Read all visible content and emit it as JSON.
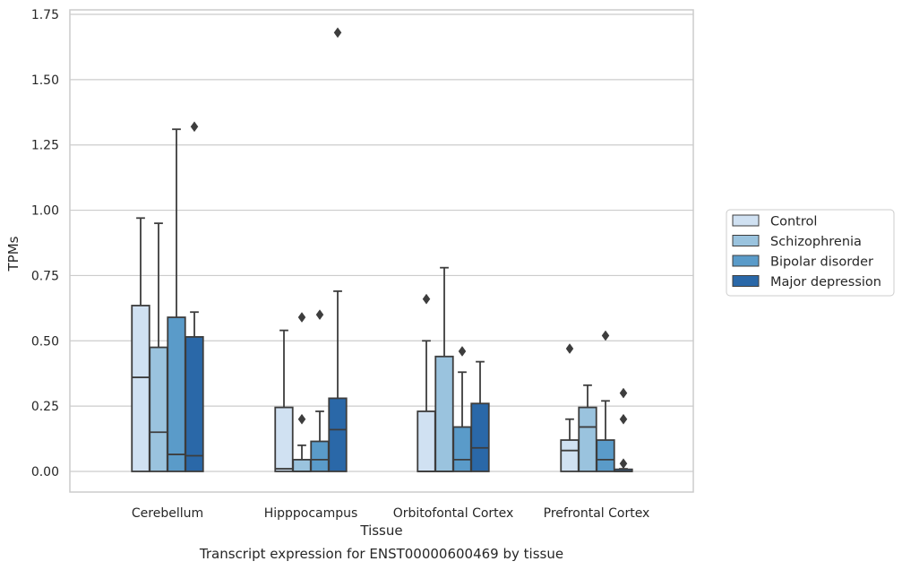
{
  "chart_data": {
    "type": "box",
    "title": "Transcript expression for ENST00000600469 by tissue",
    "xlabel": "Tissue",
    "ylabel": "TPMs",
    "ylim": [
      -0.08,
      1.76
    ],
    "yticks": [
      0.0,
      0.25,
      0.5,
      0.75,
      1.0,
      1.25,
      1.5,
      1.75
    ],
    "ytick_labels": [
      "0.00",
      "0.25",
      "0.50",
      "0.75",
      "1.00",
      "1.25",
      "1.50",
      "1.75"
    ],
    "grid": "horizontal",
    "legend_position": "right",
    "categories": [
      "Cerebellum",
      "Hipppocampus",
      "Orbitofontal Cortex",
      "Prefrontal Cortex"
    ],
    "series": [
      {
        "name": "Control",
        "color": "#d0e1f2",
        "boxes": [
          {
            "whisker_low": 0.0,
            "q1": 0.0,
            "median": 0.36,
            "q3": 0.635,
            "whisker_high": 0.97,
            "outliers": []
          },
          {
            "whisker_low": 0.0,
            "q1": 0.0,
            "median": 0.01,
            "q3": 0.245,
            "whisker_high": 0.54,
            "outliers": []
          },
          {
            "whisker_low": 0.0,
            "q1": 0.0,
            "median": 0.0,
            "q3": 0.23,
            "whisker_high": 0.5,
            "outliers": [
              0.66
            ]
          },
          {
            "whisker_low": 0.0,
            "q1": 0.0,
            "median": 0.08,
            "q3": 0.12,
            "whisker_high": 0.2,
            "outliers": [
              0.47
            ]
          }
        ]
      },
      {
        "name": "Schizophrenia",
        "color": "#9ac3de",
        "boxes": [
          {
            "whisker_low": 0.0,
            "q1": 0.0,
            "median": 0.15,
            "q3": 0.475,
            "whisker_high": 0.95,
            "outliers": []
          },
          {
            "whisker_low": 0.0,
            "q1": 0.0,
            "median": 0.0,
            "q3": 0.045,
            "whisker_high": 0.1,
            "outliers": [
              0.2,
              0.59
            ]
          },
          {
            "whisker_low": 0.0,
            "q1": 0.0,
            "median": 0.0,
            "q3": 0.44,
            "whisker_high": 0.78,
            "outliers": []
          },
          {
            "whisker_low": 0.0,
            "q1": 0.0,
            "median": 0.17,
            "q3": 0.245,
            "whisker_high": 0.33,
            "outliers": []
          }
        ]
      },
      {
        "name": "Bipolar disorder",
        "color": "#5a9bc9",
        "boxes": [
          {
            "whisker_low": 0.0,
            "q1": 0.0,
            "median": 0.065,
            "q3": 0.59,
            "whisker_high": 1.31,
            "outliers": []
          },
          {
            "whisker_low": 0.0,
            "q1": 0.0,
            "median": 0.045,
            "q3": 0.115,
            "whisker_high": 0.23,
            "outliers": [
              0.6
            ]
          },
          {
            "whisker_low": 0.0,
            "q1": 0.0,
            "median": 0.045,
            "q3": 0.17,
            "whisker_high": 0.38,
            "outliers": [
              0.46
            ]
          },
          {
            "whisker_low": 0.0,
            "q1": 0.0,
            "median": 0.045,
            "q3": 0.12,
            "whisker_high": 0.27,
            "outliers": [
              0.52
            ]
          }
        ]
      },
      {
        "name": "Major depression",
        "color": "#2a68a8",
        "boxes": [
          {
            "whisker_low": 0.0,
            "q1": 0.0,
            "median": 0.06,
            "q3": 0.515,
            "whisker_high": 0.61,
            "outliers": [
              1.32
            ]
          },
          {
            "whisker_low": 0.0,
            "q1": 0.0,
            "median": 0.16,
            "q3": 0.28,
            "whisker_high": 0.69,
            "outliers": [
              1.68
            ]
          },
          {
            "whisker_low": 0.0,
            "q1": 0.0,
            "median": 0.09,
            "q3": 0.26,
            "whisker_high": 0.42,
            "outliers": []
          },
          {
            "whisker_low": 0.0,
            "q1": 0.0,
            "median": 0.0,
            "q3": 0.008,
            "whisker_high": 0.01,
            "outliers": [
              0.03,
              0.2,
              0.3
            ]
          }
        ]
      }
    ]
  }
}
